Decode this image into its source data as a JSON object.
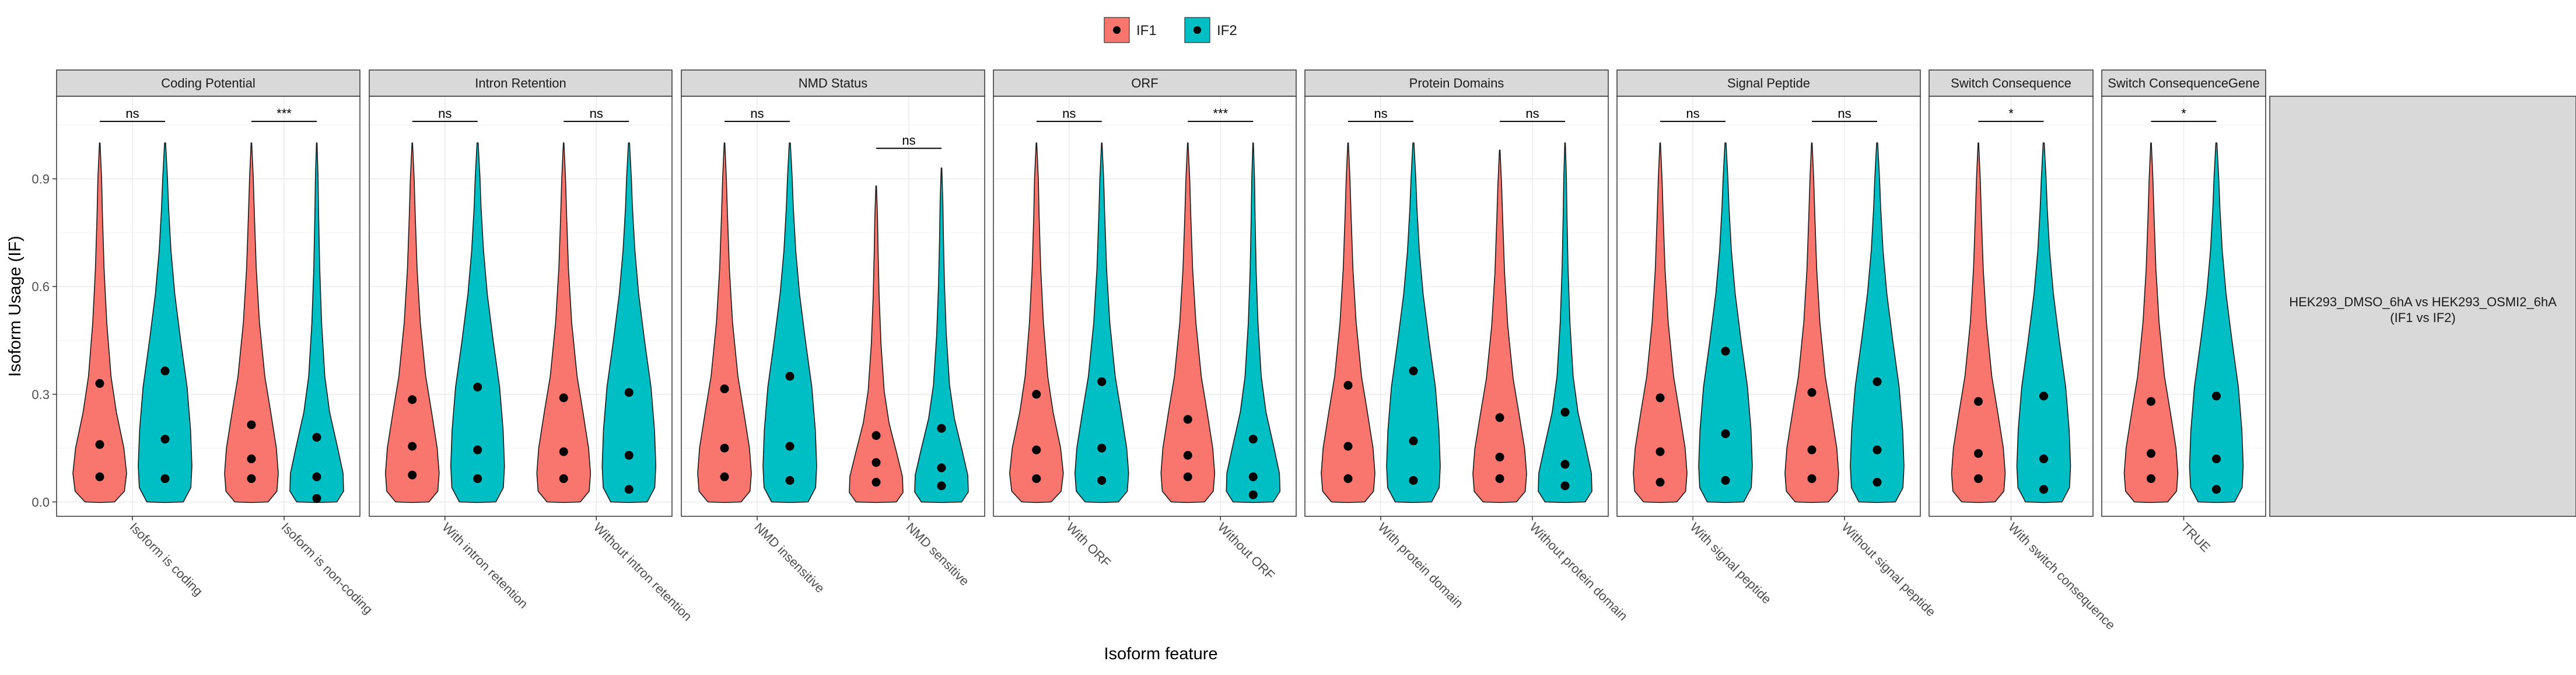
{
  "chart_data": {
    "type": "violin",
    "ylabel": "Isoform Usage (IF)",
    "xlabel": "Isoform feature",
    "ylim": [
      -0.04,
      1.13
    ],
    "yticks": [
      0.0,
      0.3,
      0.6,
      0.9
    ],
    "ytick_labels": [
      "0.0",
      "0.3",
      "0.6",
      "0.9"
    ],
    "legend": {
      "position": "top",
      "entries": [
        {
          "name": "IF1",
          "color": "#F8766D"
        },
        {
          "name": "IF2",
          "color": "#00BFC4"
        }
      ]
    },
    "strip_color": "#d9d9d9",
    "grid": true,
    "row_strip": {
      "line1": "HEK293_DMSO_6hA vs HEK293_OSMI2_6hA",
      "line2": "(IF1 vs IF2)"
    },
    "facets": [
      {
        "title": "Coding Potential",
        "categories": [
          {
            "label": "Isoform is coding",
            "sig": "ns",
            "sig_y": 1.06,
            "IF1": {
              "max": 1.0,
              "q1": 0.07,
              "median": 0.16,
              "q3": 0.33,
              "shape": "sharp"
            },
            "IF2": {
              "max": 1.0,
              "q1": 0.065,
              "median": 0.175,
              "q3": 0.365,
              "shape": "wide"
            }
          },
          {
            "label": "Isoform is non-coding",
            "sig": "***",
            "sig_y": 1.06,
            "IF1": {
              "max": 1.0,
              "q1": 0.065,
              "median": 0.12,
              "q3": 0.215,
              "shape": "mid"
            },
            "IF2": {
              "max": 1.0,
              "q1": 0.01,
              "median": 0.07,
              "q3": 0.18,
              "shape": "flat"
            }
          }
        ]
      },
      {
        "title": "Intron Retention",
        "categories": [
          {
            "label": "With intron retention",
            "sig": "ns",
            "sig_y": 1.06,
            "IF1": {
              "max": 1.0,
              "q1": 0.075,
              "median": 0.155,
              "q3": 0.285,
              "shape": "mid"
            },
            "IF2": {
              "max": 1.0,
              "q1": 0.065,
              "median": 0.145,
              "q3": 0.32,
              "shape": "wide"
            }
          },
          {
            "label": "Without intron retention",
            "sig": "ns",
            "sig_y": 1.06,
            "IF1": {
              "max": 1.0,
              "q1": 0.065,
              "median": 0.14,
              "q3": 0.29,
              "shape": "mid"
            },
            "IF2": {
              "max": 1.0,
              "q1": 0.035,
              "median": 0.13,
              "q3": 0.305,
              "shape": "wide"
            }
          }
        ]
      },
      {
        "title": "NMD Status",
        "categories": [
          {
            "label": "NMD insensitive",
            "sig": "ns",
            "sig_y": 1.06,
            "IF1": {
              "max": 1.0,
              "q1": 0.07,
              "median": 0.15,
              "q3": 0.315,
              "shape": "mid"
            },
            "IF2": {
              "max": 1.0,
              "q1": 0.06,
              "median": 0.155,
              "q3": 0.35,
              "shape": "wide"
            }
          },
          {
            "label": "NMD sensitive",
            "sig": "ns",
            "sig_y": 0.985,
            "IF1": {
              "max": 0.88,
              "q1": 0.055,
              "median": 0.11,
              "q3": 0.185,
              "shape": "flat"
            },
            "IF2": {
              "max": 0.93,
              "q1": 0.045,
              "median": 0.095,
              "q3": 0.205,
              "shape": "flat"
            }
          }
        ]
      },
      {
        "title": "ORF",
        "categories": [
          {
            "label": "With ORF",
            "sig": "ns",
            "sig_y": 1.06,
            "IF1": {
              "max": 1.0,
              "q1": 0.065,
              "median": 0.145,
              "q3": 0.3,
              "shape": "sharp"
            },
            "IF2": {
              "max": 1.0,
              "q1": 0.06,
              "median": 0.15,
              "q3": 0.335,
              "shape": "mid"
            }
          },
          {
            "label": "Without ORF",
            "sig": "***",
            "sig_y": 1.06,
            "IF1": {
              "max": 1.0,
              "q1": 0.07,
              "median": 0.13,
              "q3": 0.23,
              "shape": "mid"
            },
            "IF2": {
              "max": 1.0,
              "q1": 0.02,
              "median": 0.07,
              "q3": 0.175,
              "shape": "flat"
            }
          }
        ]
      },
      {
        "title": "Protein Domains",
        "categories": [
          {
            "label": "With protein domain",
            "sig": "ns",
            "sig_y": 1.06,
            "IF1": {
              "max": 1.0,
              "q1": 0.065,
              "median": 0.155,
              "q3": 0.325,
              "shape": "mid"
            },
            "IF2": {
              "max": 1.0,
              "q1": 0.06,
              "median": 0.17,
              "q3": 0.365,
              "shape": "wide"
            }
          },
          {
            "label": "Without protein domain",
            "sig": "ns",
            "sig_y": 1.06,
            "IF1": {
              "max": 0.98,
              "q1": 0.065,
              "median": 0.125,
              "q3": 0.235,
              "shape": "mid"
            },
            "IF2": {
              "max": 1.0,
              "q1": 0.045,
              "median": 0.105,
              "q3": 0.25,
              "shape": "flat"
            }
          }
        ]
      },
      {
        "title": "Signal Peptide",
        "categories": [
          {
            "label": "With signal peptide",
            "sig": "ns",
            "sig_y": 1.06,
            "IF1": {
              "max": 1.0,
              "q1": 0.055,
              "median": 0.14,
              "q3": 0.29,
              "shape": "mid"
            },
            "IF2": {
              "max": 1.0,
              "q1": 0.06,
              "median": 0.19,
              "q3": 0.42,
              "shape": "wide"
            }
          },
          {
            "label": "Without signal peptide",
            "sig": "ns",
            "sig_y": 1.06,
            "IF1": {
              "max": 1.0,
              "q1": 0.065,
              "median": 0.145,
              "q3": 0.305,
              "shape": "mid"
            },
            "IF2": {
              "max": 1.0,
              "q1": 0.055,
              "median": 0.145,
              "q3": 0.335,
              "shape": "wide"
            }
          }
        ]
      },
      {
        "title": "Switch Consequence",
        "categories": [
          {
            "label": "With switch consequence",
            "sig": "*",
            "sig_y": 1.06,
            "IF1": {
              "max": 1.0,
              "q1": 0.065,
              "median": 0.135,
              "q3": 0.28,
              "shape": "mid"
            },
            "IF2": {
              "max": 1.0,
              "q1": 0.035,
              "median": 0.12,
              "q3": 0.295,
              "shape": "wide"
            }
          }
        ]
      },
      {
        "title": "Switch ConsequenceGene",
        "categories": [
          {
            "label": "TRUE",
            "sig": "*",
            "sig_y": 1.06,
            "IF1": {
              "max": 1.0,
              "q1": 0.065,
              "median": 0.135,
              "q3": 0.28,
              "shape": "mid"
            },
            "IF2": {
              "max": 1.0,
              "q1": 0.035,
              "median": 0.12,
              "q3": 0.295,
              "shape": "wide"
            }
          }
        ]
      }
    ]
  }
}
